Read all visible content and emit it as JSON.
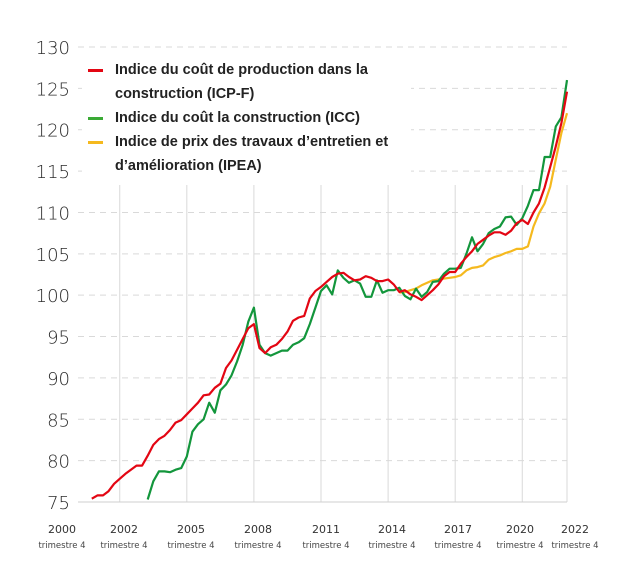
{
  "chart_data": {
    "type": "line",
    "title": "",
    "xlabel": "",
    "ylabel": "",
    "ylim": [
      75,
      130
    ],
    "yticks": [
      75,
      80,
      85,
      90,
      95,
      100,
      105,
      110,
      115,
      120,
      125,
      130
    ],
    "grid": {
      "horizontal": "dashed",
      "vertical": "solid"
    },
    "legend_position": "top-left",
    "x_ticks": [
      {
        "year": "2000",
        "sub": "trimestre 4"
      },
      {
        "year": "2002",
        "sub": "trimestre 4"
      },
      {
        "year": "2005",
        "sub": "trimestre 4"
      },
      {
        "year": "2008",
        "sub": "trimestre 4"
      },
      {
        "year": "2011",
        "sub": "trimestre 4"
      },
      {
        "year": "2014",
        "sub": "trimestre 4"
      },
      {
        "year": "2017",
        "sub": "trimestre 4"
      },
      {
        "year": "2020",
        "sub": "trimestre 4"
      },
      {
        "year": "2022",
        "sub": "trimestre 4"
      }
    ],
    "x_range": [
      "2000 T4",
      "2022 T4"
    ],
    "series": [
      {
        "name": "Indice du coût de production dans la construction (ICP-F)",
        "color": "#e30613",
        "start": "2001 T3",
        "values": [
          75.4,
          75.8,
          75.8,
          76.3,
          77.2,
          77.8,
          78.4,
          78.9,
          79.4,
          79.4,
          80.6,
          81.9,
          82.6,
          83.0,
          83.7,
          84.6,
          84.9,
          85.6,
          86.3,
          87.0,
          87.9,
          88.0,
          88.8,
          89.3,
          91.2,
          92.1,
          93.4,
          94.7,
          96.0,
          96.5,
          93.6,
          93.0,
          93.7,
          94.0,
          94.7,
          95.6,
          96.9,
          97.3,
          97.5,
          99.6,
          100.5,
          101.0,
          101.6,
          102.2,
          102.6,
          102.7,
          102.2,
          101.8,
          101.9,
          102.3,
          102.1,
          101.7,
          101.7,
          101.9,
          101.3,
          100.4,
          100.6,
          100.1,
          99.8,
          99.4,
          100.0,
          100.6,
          101.3,
          102.3,
          102.8,
          102.8,
          103.8,
          104.6,
          105.3,
          106.2,
          106.7,
          107.2,
          107.6,
          107.6,
          107.3,
          107.8,
          108.7,
          109.1,
          108.6,
          110.0,
          111.1,
          113.0,
          115.5,
          118.0,
          120.8,
          124.6
        ]
      },
      {
        "name": "Indice du coût la construction (ICC)",
        "color": "#13963c",
        "legend_color": "#3aaa35",
        "start": "2004 T1",
        "values": [
          75.3,
          77.5,
          78.7,
          78.7,
          78.6,
          78.9,
          79.1,
          80.5,
          83.5,
          84.4,
          85.0,
          87.0,
          85.8,
          88.5,
          89.2,
          90.3,
          92.0,
          94.0,
          96.8,
          98.5,
          94.0,
          93.0,
          92.7,
          93.0,
          93.3,
          93.3,
          94.0,
          94.3,
          94.8,
          96.5,
          98.5,
          100.5,
          101.2,
          100.1,
          103.0,
          102.1,
          101.5,
          101.8,
          101.4,
          99.8,
          99.8,
          101.8,
          100.3,
          100.6,
          100.6,
          100.9,
          99.9,
          99.5,
          100.8,
          99.8,
          100.4,
          101.6,
          101.7,
          102.6,
          103.2,
          103.2,
          103.3,
          105.0,
          107.0,
          105.3,
          106.2,
          107.5,
          108.0,
          108.3,
          109.4,
          109.5,
          108.5,
          109.3,
          110.8,
          112.7,
          112.7,
          116.7,
          116.7,
          120.4,
          121.5,
          126.0
        ]
      },
      {
        "name": "Indice de prix des travaux d’entretien et d’amélioration (IPEA)",
        "color": "#f5b91e",
        "start": "2015 T2",
        "values": [
          100.3,
          100.4,
          100.6,
          100.8,
          101.2,
          101.5,
          101.8,
          101.9,
          102.0,
          102.1,
          102.2,
          102.4,
          103.0,
          103.3,
          103.4,
          103.6,
          104.3,
          104.6,
          104.8,
          105.1,
          105.3,
          105.6,
          105.6,
          105.9,
          108.3,
          109.9,
          111.1,
          113.1,
          116.4,
          119.6,
          122.0
        ]
      }
    ]
  },
  "legend": {
    "items": [
      {
        "label": "Indice du coût de production dans la construction (ICP-F)",
        "color": "#e30613"
      },
      {
        "label": "Indice du coût la construction (ICC)",
        "color": "#3aaa35"
      },
      {
        "label": "Indice de prix des travaux d’entretien et d’amélioration (IPEA)",
        "color": "#f5b91e"
      }
    ]
  }
}
